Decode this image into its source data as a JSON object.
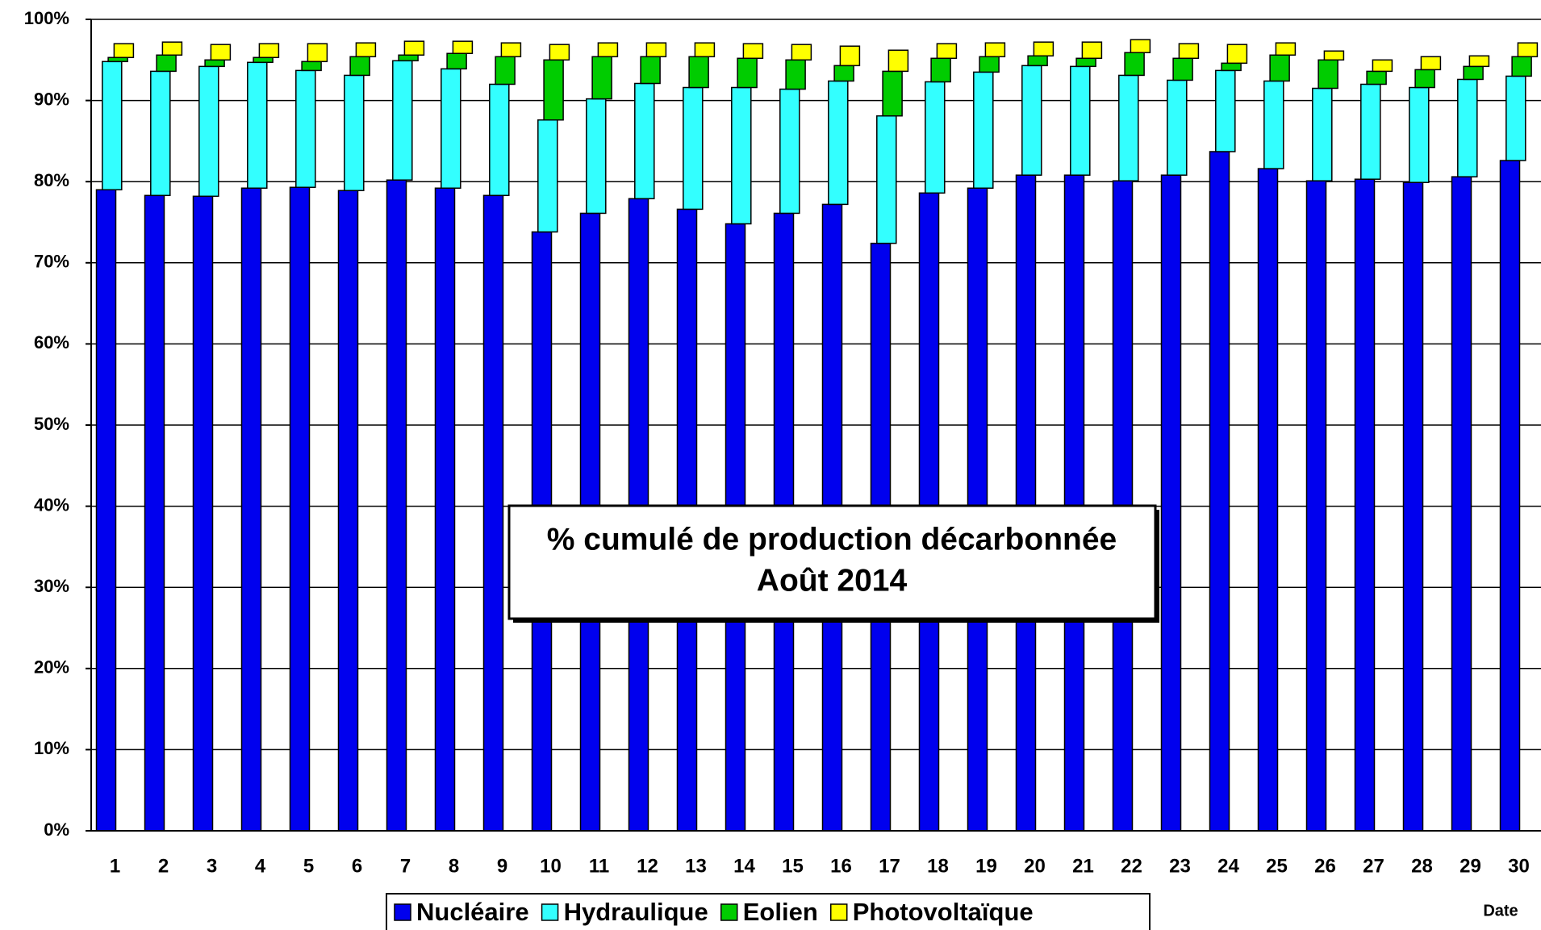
{
  "chart_data": {
    "type": "stacked-bar",
    "title": "% cumulé de production décarbonnée",
    "subtitle": "Août 2014",
    "xlabel": "Date",
    "categories": [
      "1",
      "2",
      "3",
      "4",
      "5",
      "6",
      "7",
      "8",
      "9",
      "10",
      "11",
      "12",
      "13",
      "14",
      "15",
      "16",
      "17",
      "18",
      "19",
      "20",
      "21",
      "22",
      "23",
      "24",
      "25",
      "26",
      "27",
      "28",
      "29",
      "30"
    ],
    "series": [
      {
        "name": "Nucléaire",
        "color": "#0000ee",
        "values": [
          79.0,
          78.3,
          78.2,
          79.2,
          79.3,
          78.9,
          80.2,
          79.2,
          78.3,
          73.8,
          76.1,
          77.9,
          76.6,
          74.8,
          76.1,
          77.2,
          72.4,
          78.6,
          79.2,
          80.8,
          80.8,
          80.1,
          80.8,
          83.7,
          81.6,
          80.1,
          80.3,
          79.9,
          80.6,
          82.6
        ]
      },
      {
        "name": "Hydraulique",
        "color": "#33ffff",
        "values": [
          15.8,
          15.3,
          16.0,
          15.5,
          14.4,
          14.2,
          14.7,
          14.7,
          13.7,
          13.8,
          14.1,
          14.2,
          15.0,
          16.8,
          15.3,
          15.2,
          15.7,
          13.7,
          14.3,
          13.5,
          13.4,
          13.0,
          11.7,
          10.0,
          10.8,
          11.4,
          11.7,
          11.7,
          12.0,
          10.4
        ]
      },
      {
        "name": "Eolien",
        "color": "#00cc00",
        "values": [
          0.5,
          2.0,
          0.8,
          0.6,
          1.1,
          2.3,
          0.7,
          1.9,
          3.4,
          7.4,
          5.2,
          3.3,
          3.8,
          3.6,
          3.6,
          1.9,
          5.5,
          2.9,
          1.9,
          1.2,
          1.0,
          2.8,
          2.7,
          0.9,
          3.2,
          3.5,
          1.6,
          2.2,
          1.6,
          2.4
        ]
      },
      {
        "name": "Photovoltaïque",
        "color": "#ffff00",
        "values": [
          1.7,
          1.6,
          1.9,
          1.7,
          2.2,
          1.7,
          1.7,
          1.5,
          1.7,
          1.9,
          1.7,
          1.7,
          1.7,
          1.8,
          1.9,
          2.4,
          2.6,
          1.8,
          1.7,
          1.7,
          2.0,
          1.6,
          1.8,
          2.3,
          1.5,
          1.1,
          1.4,
          1.6,
          1.3,
          1.7
        ]
      }
    ],
    "ylim": [
      0,
      100
    ],
    "yticks": [
      {
        "value": 0,
        "label": "0%"
      },
      {
        "value": 10,
        "label": "10%"
      },
      {
        "value": 20,
        "label": "20%"
      },
      {
        "value": 30,
        "label": "30%"
      },
      {
        "value": 40,
        "label": "40%"
      },
      {
        "value": 50,
        "label": "50%"
      },
      {
        "value": 60,
        "label": "60%"
      },
      {
        "value": 70,
        "label": "70%"
      },
      {
        "value": 80,
        "label": "80%"
      },
      {
        "value": 90,
        "label": "90%"
      },
      {
        "value": 100,
        "label": "100%"
      }
    ],
    "grid": true
  }
}
